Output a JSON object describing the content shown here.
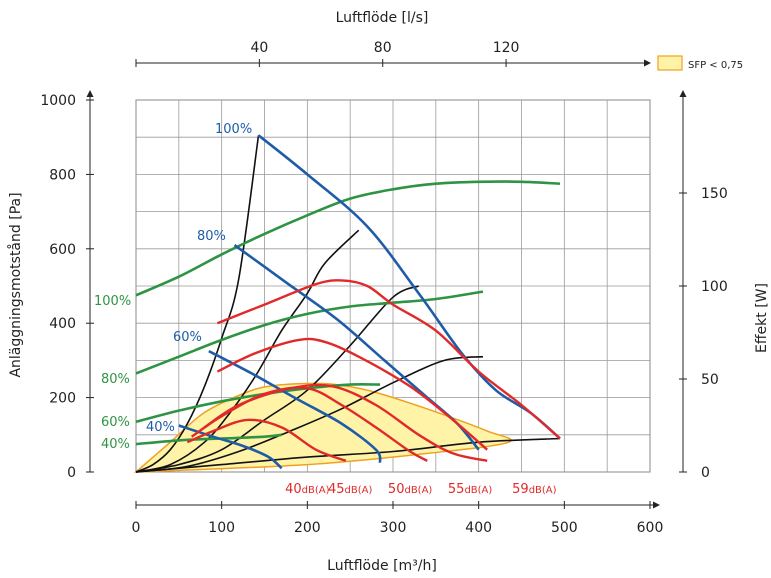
{
  "chart_data": {
    "type": "line",
    "title": "",
    "xlabel": "Luftflöde [m³/h]",
    "top_xlabel": "Luftflöde [l/s]",
    "ylabel": "Anläggningsmotstånd [Pa]",
    "right_ylabel": "Effekt [W]",
    "xlim": [
      0,
      600
    ],
    "ylim": [
      0,
      1000
    ],
    "top_xlim_ls": [
      0,
      166.7
    ],
    "right_ylim_w": [
      0,
      200
    ],
    "grid": true,
    "x_ticks": [
      "0",
      "100",
      "200",
      "300",
      "400",
      "500",
      "600"
    ],
    "y_ticks": [
      "0",
      "200",
      "400",
      "600",
      "800",
      "1000"
    ],
    "top_ticks": [
      "40",
      "80",
      "120"
    ],
    "right_ticks": [
      "0",
      "50",
      "100",
      "150"
    ],
    "legend": {
      "label": "SFP < 0,75",
      "color": "#fff3a8",
      "border": "#f0a020",
      "placement": "top-right"
    },
    "sfp_region": {
      "name": "SFP < 0,75",
      "points": [
        [
          0,
          0
        ],
        [
          40,
          80
        ],
        [
          80,
          160
        ],
        [
          130,
          215
        ],
        [
          160,
          232
        ],
        [
          200,
          238
        ],
        [
          230,
          236
        ],
        [
          270,
          220
        ],
        [
          320,
          185
        ],
        [
          370,
          145
        ],
        [
          410,
          110
        ],
        [
          435,
          80
        ],
        [
          340,
          50
        ],
        [
          200,
          20
        ],
        [
          0,
          0
        ]
      ]
    },
    "fan_curves_pressure": [
      {
        "name": "100%",
        "color": "#1f5ca8",
        "points": [
          [
            143,
            905
          ],
          [
            200,
            800
          ],
          [
            270,
            660
          ],
          [
            330,
            480
          ],
          [
            380,
            320
          ],
          [
            420,
            220
          ],
          [
            460,
            160
          ],
          [
            495,
            90
          ]
        ]
      },
      {
        "name": "80%",
        "color": "#1f5ca8",
        "points": [
          [
            115,
            610
          ],
          [
            175,
            510
          ],
          [
            235,
            410
          ],
          [
            290,
            300
          ],
          [
            340,
            200
          ],
          [
            375,
            130
          ],
          [
            400,
            60
          ]
        ]
      },
      {
        "name": "60%",
        "color": "#1f5ca8",
        "points": [
          [
            85,
            325
          ],
          [
            135,
            265
          ],
          [
            185,
            200
          ],
          [
            240,
            130
          ],
          [
            280,
            60
          ],
          [
            285,
            25
          ]
        ]
      },
      {
        "name": "40%",
        "color": "#1f5ca8",
        "points": [
          [
            50,
            125
          ],
          [
            90,
            95
          ],
          [
            125,
            70
          ],
          [
            155,
            40
          ],
          [
            170,
            10
          ]
        ]
      }
    ],
    "fan_curves_power": [
      {
        "name": "100%",
        "color": "#2e9444",
        "points_w": [
          [
            0,
            95
          ],
          [
            50,
            105
          ],
          [
            100,
            117
          ],
          [
            150,
            128
          ],
          [
            200,
            138
          ],
          [
            250,
            147
          ],
          [
            300,
            152
          ],
          [
            350,
            155
          ],
          [
            400,
            156
          ],
          [
            450,
            156
          ],
          [
            495,
            155
          ]
        ]
      },
      {
        "name": "80%",
        "color": "#2e9444",
        "points_w": [
          [
            0,
            53
          ],
          [
            50,
            62
          ],
          [
            100,
            71
          ],
          [
            150,
            79
          ],
          [
            200,
            85
          ],
          [
            250,
            89
          ],
          [
            300,
            91
          ],
          [
            350,
            93
          ],
          [
            405,
            97
          ]
        ]
      },
      {
        "name": "60%",
        "color": "#2e9444",
        "points_w": [
          [
            0,
            27
          ],
          [
            50,
            33
          ],
          [
            100,
            38
          ],
          [
            150,
            42
          ],
          [
            200,
            45
          ],
          [
            250,
            47
          ],
          [
            285,
            47
          ]
        ]
      },
      {
        "name": "40%",
        "color": "#2e9444",
        "points_w": [
          [
            0,
            15
          ],
          [
            50,
            17
          ],
          [
            100,
            18
          ],
          [
            150,
            19
          ],
          [
            170,
            20
          ]
        ]
      }
    ],
    "sound_curves": [
      {
        "name": "40dB(A)",
        "color": "#e02a2a",
        "points": [
          [
            60,
            80
          ],
          [
            90,
            110
          ],
          [
            130,
            140
          ],
          [
            170,
            120
          ],
          [
            210,
            60
          ],
          [
            245,
            30
          ]
        ]
      },
      {
        "name": "45dB(A)",
        "color": "#e02a2a",
        "points": [
          [
            65,
            95
          ],
          [
            100,
            150
          ],
          [
            150,
            210
          ],
          [
            200,
            225
          ],
          [
            240,
            180
          ],
          [
            280,
            120
          ],
          [
            320,
            55
          ],
          [
            340,
            30
          ]
        ]
      },
      {
        "name": "50dB(A)",
        "color": "#e02a2a",
        "points": [
          [
            80,
            120
          ],
          [
            120,
            180
          ],
          [
            180,
            225
          ],
          [
            230,
            230
          ],
          [
            280,
            180
          ],
          [
            330,
            100
          ],
          [
            370,
            50
          ],
          [
            410,
            30
          ]
        ]
      },
      {
        "name": "55dB(A)",
        "color": "#e02a2a",
        "points": [
          [
            95,
            270
          ],
          [
            140,
            320
          ],
          [
            190,
            355
          ],
          [
            220,
            350
          ],
          [
            260,
            310
          ],
          [
            320,
            230
          ],
          [
            370,
            140
          ],
          [
            410,
            60
          ]
        ]
      },
      {
        "name": "59dB(A)",
        "color": "#e02a2a",
        "points": [
          [
            95,
            400
          ],
          [
            150,
            450
          ],
          [
            210,
            505
          ],
          [
            240,
            515
          ],
          [
            270,
            500
          ],
          [
            300,
            450
          ],
          [
            350,
            380
          ],
          [
            400,
            270
          ],
          [
            450,
            180
          ],
          [
            495,
            90
          ]
        ]
      }
    ],
    "system_curves": [
      {
        "points": [
          [
            0,
            0
          ],
          [
            20,
            20
          ],
          [
            40,
            60
          ],
          [
            60,
            130
          ],
          [
            80,
            230
          ],
          [
            100,
            360
          ],
          [
            120,
            520
          ],
          [
            143,
            905
          ]
        ]
      },
      {
        "points": [
          [
            0,
            0
          ],
          [
            40,
            20
          ],
          [
            80,
            80
          ],
          [
            110,
            160
          ],
          [
            140,
            260
          ],
          [
            170,
            380
          ],
          [
            200,
            480
          ],
          [
            220,
            560
          ],
          [
            260,
            650
          ]
        ]
      },
      {
        "points": [
          [
            0,
            0
          ],
          [
            50,
            20
          ],
          [
            100,
            60
          ],
          [
            150,
            140
          ],
          [
            200,
            220
          ],
          [
            250,
            340
          ],
          [
            300,
            470
          ],
          [
            330,
            500
          ]
        ]
      },
      {
        "points": [
          [
            0,
            0
          ],
          [
            60,
            15
          ],
          [
            120,
            55
          ],
          [
            180,
            110
          ],
          [
            240,
            170
          ],
          [
            300,
            240
          ],
          [
            360,
            300
          ],
          [
            405,
            310
          ]
        ]
      },
      {
        "points": [
          [
            0,
            0
          ],
          [
            100,
            20
          ],
          [
            200,
            40
          ],
          [
            300,
            55
          ],
          [
            400,
            80
          ],
          [
            495,
            90
          ]
        ]
      }
    ],
    "series_labels": {
      "blue": [
        "100%",
        "80%",
        "60%",
        "40%"
      ],
      "green": [
        "100%",
        "80%",
        "60%",
        "40%"
      ],
      "red": [
        "40dB(A)",
        "45dB(A)",
        "50dB(A)",
        "55dB(A)",
        "59dB(A)"
      ]
    },
    "red_label_x": [
      200,
      250,
      320,
      390,
      465
    ]
  }
}
